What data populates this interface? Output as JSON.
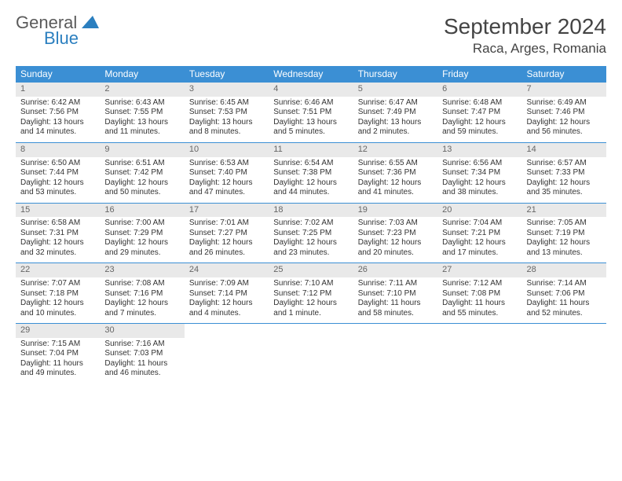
{
  "brand": {
    "word1": "General",
    "word2": "Blue"
  },
  "title": "September 2024",
  "location": "Raca, Arges, Romania",
  "colors": {
    "header_bg": "#3b8fd4",
    "header_text": "#ffffff",
    "daynum_bg": "#e9e9e9",
    "daynum_text": "#666666",
    "border": "#3b8fd4",
    "brand_gray": "#5a5a5a",
    "brand_blue": "#2b7fbf"
  },
  "day_headers": [
    "Sunday",
    "Monday",
    "Tuesday",
    "Wednesday",
    "Thursday",
    "Friday",
    "Saturday"
  ],
  "weeks": [
    [
      {
        "n": "1",
        "sr": "Sunrise: 6:42 AM",
        "ss": "Sunset: 7:56 PM",
        "d1": "Daylight: 13 hours",
        "d2": "and 14 minutes."
      },
      {
        "n": "2",
        "sr": "Sunrise: 6:43 AM",
        "ss": "Sunset: 7:55 PM",
        "d1": "Daylight: 13 hours",
        "d2": "and 11 minutes."
      },
      {
        "n": "3",
        "sr": "Sunrise: 6:45 AM",
        "ss": "Sunset: 7:53 PM",
        "d1": "Daylight: 13 hours",
        "d2": "and 8 minutes."
      },
      {
        "n": "4",
        "sr": "Sunrise: 6:46 AM",
        "ss": "Sunset: 7:51 PM",
        "d1": "Daylight: 13 hours",
        "d2": "and 5 minutes."
      },
      {
        "n": "5",
        "sr": "Sunrise: 6:47 AM",
        "ss": "Sunset: 7:49 PM",
        "d1": "Daylight: 13 hours",
        "d2": "and 2 minutes."
      },
      {
        "n": "6",
        "sr": "Sunrise: 6:48 AM",
        "ss": "Sunset: 7:47 PM",
        "d1": "Daylight: 12 hours",
        "d2": "and 59 minutes."
      },
      {
        "n": "7",
        "sr": "Sunrise: 6:49 AM",
        "ss": "Sunset: 7:46 PM",
        "d1": "Daylight: 12 hours",
        "d2": "and 56 minutes."
      }
    ],
    [
      {
        "n": "8",
        "sr": "Sunrise: 6:50 AM",
        "ss": "Sunset: 7:44 PM",
        "d1": "Daylight: 12 hours",
        "d2": "and 53 minutes."
      },
      {
        "n": "9",
        "sr": "Sunrise: 6:51 AM",
        "ss": "Sunset: 7:42 PM",
        "d1": "Daylight: 12 hours",
        "d2": "and 50 minutes."
      },
      {
        "n": "10",
        "sr": "Sunrise: 6:53 AM",
        "ss": "Sunset: 7:40 PM",
        "d1": "Daylight: 12 hours",
        "d2": "and 47 minutes."
      },
      {
        "n": "11",
        "sr": "Sunrise: 6:54 AM",
        "ss": "Sunset: 7:38 PM",
        "d1": "Daylight: 12 hours",
        "d2": "and 44 minutes."
      },
      {
        "n": "12",
        "sr": "Sunrise: 6:55 AM",
        "ss": "Sunset: 7:36 PM",
        "d1": "Daylight: 12 hours",
        "d2": "and 41 minutes."
      },
      {
        "n": "13",
        "sr": "Sunrise: 6:56 AM",
        "ss": "Sunset: 7:34 PM",
        "d1": "Daylight: 12 hours",
        "d2": "and 38 minutes."
      },
      {
        "n": "14",
        "sr": "Sunrise: 6:57 AM",
        "ss": "Sunset: 7:33 PM",
        "d1": "Daylight: 12 hours",
        "d2": "and 35 minutes."
      }
    ],
    [
      {
        "n": "15",
        "sr": "Sunrise: 6:58 AM",
        "ss": "Sunset: 7:31 PM",
        "d1": "Daylight: 12 hours",
        "d2": "and 32 minutes."
      },
      {
        "n": "16",
        "sr": "Sunrise: 7:00 AM",
        "ss": "Sunset: 7:29 PM",
        "d1": "Daylight: 12 hours",
        "d2": "and 29 minutes."
      },
      {
        "n": "17",
        "sr": "Sunrise: 7:01 AM",
        "ss": "Sunset: 7:27 PM",
        "d1": "Daylight: 12 hours",
        "d2": "and 26 minutes."
      },
      {
        "n": "18",
        "sr": "Sunrise: 7:02 AM",
        "ss": "Sunset: 7:25 PM",
        "d1": "Daylight: 12 hours",
        "d2": "and 23 minutes."
      },
      {
        "n": "19",
        "sr": "Sunrise: 7:03 AM",
        "ss": "Sunset: 7:23 PM",
        "d1": "Daylight: 12 hours",
        "d2": "and 20 minutes."
      },
      {
        "n": "20",
        "sr": "Sunrise: 7:04 AM",
        "ss": "Sunset: 7:21 PM",
        "d1": "Daylight: 12 hours",
        "d2": "and 17 minutes."
      },
      {
        "n": "21",
        "sr": "Sunrise: 7:05 AM",
        "ss": "Sunset: 7:19 PM",
        "d1": "Daylight: 12 hours",
        "d2": "and 13 minutes."
      }
    ],
    [
      {
        "n": "22",
        "sr": "Sunrise: 7:07 AM",
        "ss": "Sunset: 7:18 PM",
        "d1": "Daylight: 12 hours",
        "d2": "and 10 minutes."
      },
      {
        "n": "23",
        "sr": "Sunrise: 7:08 AM",
        "ss": "Sunset: 7:16 PM",
        "d1": "Daylight: 12 hours",
        "d2": "and 7 minutes."
      },
      {
        "n": "24",
        "sr": "Sunrise: 7:09 AM",
        "ss": "Sunset: 7:14 PM",
        "d1": "Daylight: 12 hours",
        "d2": "and 4 minutes."
      },
      {
        "n": "25",
        "sr": "Sunrise: 7:10 AM",
        "ss": "Sunset: 7:12 PM",
        "d1": "Daylight: 12 hours",
        "d2": "and 1 minute."
      },
      {
        "n": "26",
        "sr": "Sunrise: 7:11 AM",
        "ss": "Sunset: 7:10 PM",
        "d1": "Daylight: 11 hours",
        "d2": "and 58 minutes."
      },
      {
        "n": "27",
        "sr": "Sunrise: 7:12 AM",
        "ss": "Sunset: 7:08 PM",
        "d1": "Daylight: 11 hours",
        "d2": "and 55 minutes."
      },
      {
        "n": "28",
        "sr": "Sunrise: 7:14 AM",
        "ss": "Sunset: 7:06 PM",
        "d1": "Daylight: 11 hours",
        "d2": "and 52 minutes."
      }
    ],
    [
      {
        "n": "29",
        "sr": "Sunrise: 7:15 AM",
        "ss": "Sunset: 7:04 PM",
        "d1": "Daylight: 11 hours",
        "d2": "and 49 minutes."
      },
      {
        "n": "30",
        "sr": "Sunrise: 7:16 AM",
        "ss": "Sunset: 7:03 PM",
        "d1": "Daylight: 11 hours",
        "d2": "and 46 minutes."
      },
      null,
      null,
      null,
      null,
      null
    ]
  ]
}
